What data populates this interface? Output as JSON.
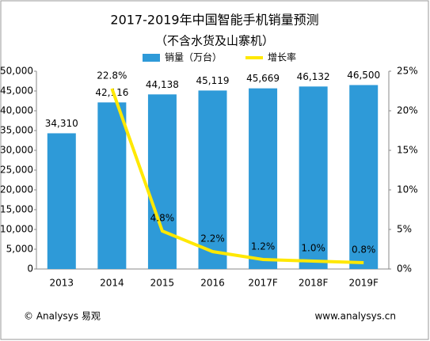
{
  "chart_data": {
    "type": "bar_line",
    "title": "2017-2019年中国智能手机销量预测",
    "subtitle": "（不含水货及山寨机）",
    "categories": [
      "2013",
      "2014",
      "2015",
      "2016",
      "2017F",
      "2018F",
      "2019F"
    ],
    "series": [
      {
        "name": "销量（万台）",
        "color": "#2e9ad8",
        "type": "bar",
        "values": [
          34310,
          42116,
          44138,
          45119,
          45669,
          46132,
          46500
        ],
        "value_labels": [
          "34,310",
          "42,116",
          "44,138",
          "45,119",
          "45,669",
          "46,132",
          "46,500"
        ]
      },
      {
        "name": "增长率",
        "color": "#ffe800",
        "type": "line",
        "axis": "y2",
        "values": [
          null,
          22.8,
          4.8,
          2.2,
          1.2,
          1.0,
          0.8
        ],
        "value_labels": [
          null,
          "22.8%",
          "4.8%",
          "2.2%",
          "1.2%",
          "1.0%",
          "0.8%"
        ]
      }
    ],
    "ylim": [
      0,
      50000
    ],
    "yticks": [
      0,
      {
        "value": 5000,
        "label": "5,000"
      },
      {
        "value": 10000,
        "label": "10,000"
      },
      {
        "value": 15000,
        "label": "15,000"
      },
      {
        "value": 20000,
        "label": "20,000"
      },
      {
        "value": 25000,
        "label": "25,000"
      },
      {
        "value": 30000,
        "label": "30,000"
      },
      {
        "value": 35000,
        "label": "35,000"
      },
      {
        "value": 40000,
        "label": "40,000"
      },
      {
        "value": 45000,
        "label": "45,000"
      },
      {
        "value": 50000,
        "label": "50,000"
      }
    ],
    "y2lim": [
      0,
      25
    ],
    "y2ticks": [
      {
        "value": 0,
        "label": "0%"
      },
      {
        "value": 5,
        "label": "5%"
      },
      {
        "value": 10,
        "label": "10%"
      },
      {
        "value": 15,
        "label": "15%"
      },
      {
        "value": 20,
        "label": "20%"
      },
      {
        "value": 25,
        "label": "25%"
      }
    ],
    "legend": "top",
    "source": "© Analysys 易观",
    "website": "www.analysys.cn"
  }
}
